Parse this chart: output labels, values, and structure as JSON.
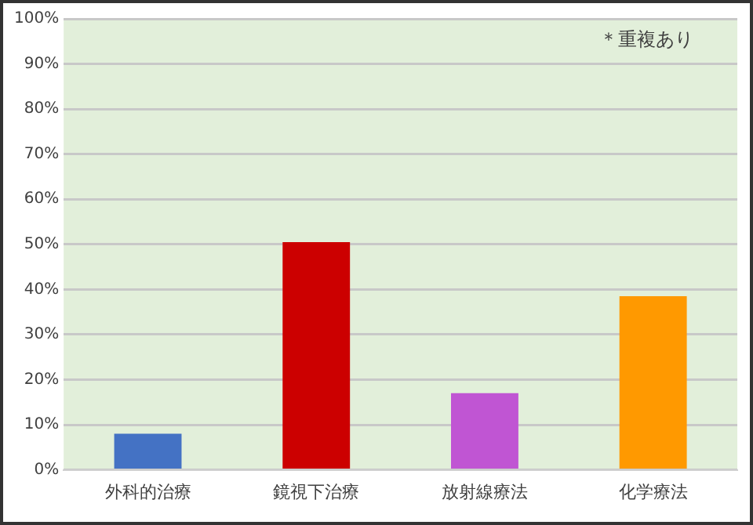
{
  "chart_data": {
    "type": "bar",
    "categories": [
      "外科的治療",
      "鏡視下治療",
      "放射線療法",
      "化学療法"
    ],
    "values": [
      8,
      50.5,
      17,
      38.5
    ],
    "colors": [
      "#4472c4",
      "#cc0000",
      "#c055d3",
      "#ff9900"
    ],
    "ylim": [
      0,
      100
    ],
    "yticks": [
      {
        "value": 0,
        "label": "0%"
      },
      {
        "value": 10,
        "label": "10%"
      },
      {
        "value": 20,
        "label": "20%"
      },
      {
        "value": 30,
        "label": "30%"
      },
      {
        "value": 40,
        "label": "40%"
      },
      {
        "value": 50,
        "label": "50%"
      },
      {
        "value": 60,
        "label": "60%"
      },
      {
        "value": 70,
        "label": "70%"
      },
      {
        "value": 80,
        "label": "80%"
      },
      {
        "value": 90,
        "label": "90%"
      },
      {
        "value": 100,
        "label": "100%"
      }
    ],
    "grid": "y",
    "legend": false,
    "annotations": [
      "＊重複あり"
    ]
  }
}
